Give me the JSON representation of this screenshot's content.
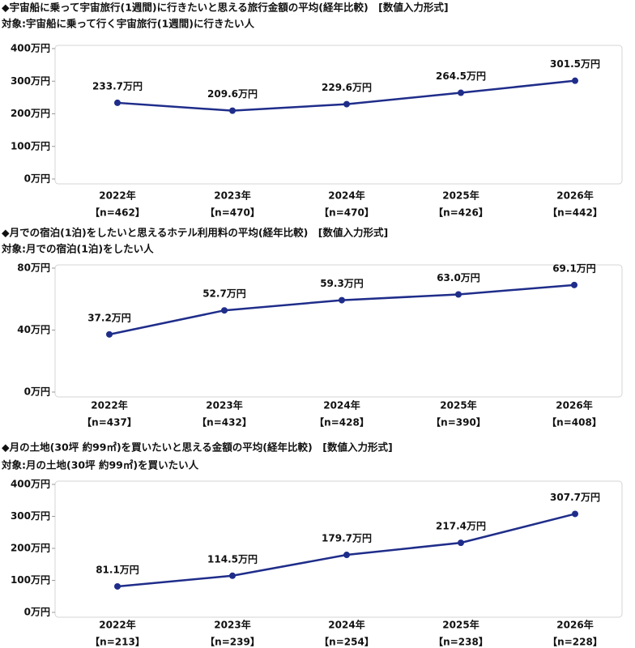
{
  "chart_data": [
    {
      "type": "line",
      "title": "◆宇宙船に乗って宇宙旅行(1週間)に行きたいと思える旅行金額の平均(経年比較)　[数値入力形式]",
      "subtitle": "対象:宇宙船に乗って行く宇宙旅行(1週間)に行きたい人",
      "categories": [
        "2022年",
        "2023年",
        "2024年",
        "2025年",
        "2026年"
      ],
      "sample_sizes": [
        "【n=462】",
        "【n=470】",
        "【n=470】",
        "【n=426】",
        "【n=442】"
      ],
      "values": [
        233.7,
        209.6,
        229.6,
        264.5,
        301.5
      ],
      "value_labels": [
        "233.7万円",
        "209.6万円",
        "229.6万円",
        "264.5万円",
        "301.5万円"
      ],
      "color": "#1f2d8a",
      "ylim": [
        0,
        400
      ],
      "yticks": [
        {
          "value": 0,
          "label": "0万円"
        },
        {
          "value": 100,
          "label": "100万円"
        },
        {
          "value": 200,
          "label": "200万円"
        },
        {
          "value": 300,
          "label": "300万円"
        },
        {
          "value": 400,
          "label": "400万円"
        }
      ]
    },
    {
      "type": "line",
      "title": "◆月での宿泊(1泊)をしたいと思えるホテル利用料の平均(経年比較)　[数値入力形式]",
      "subtitle": "対象:月での宿泊(1泊)をしたい人",
      "categories": [
        "2022年",
        "2023年",
        "2024年",
        "2025年",
        "2026年"
      ],
      "sample_sizes": [
        "【n=437】",
        "【n=432】",
        "【n=428】",
        "【n=390】",
        "【n=408】"
      ],
      "values": [
        37.2,
        52.7,
        59.3,
        63.0,
        69.1
      ],
      "value_labels": [
        "37.2万円",
        "52.7万円",
        "59.3万円",
        "63.0万円",
        "69.1万円"
      ],
      "color": "#1f2d8a",
      "ylim": [
        0,
        80
      ],
      "yticks": [
        {
          "value": 0,
          "label": "0万円"
        },
        {
          "value": 40,
          "label": "40万円"
        },
        {
          "value": 80,
          "label": "80万円"
        }
      ]
    },
    {
      "type": "line",
      "title": "◆月の土地(30坪 約99㎡)を買いたいと思える金額の平均(経年比較)　[数値入力形式]",
      "subtitle": "対象:月の土地(30坪 約99㎡)を買いたい人",
      "categories": [
        "2022年",
        "2023年",
        "2024年",
        "2025年",
        "2026年"
      ],
      "sample_sizes": [
        "【n=213】",
        "【n=239】",
        "【n=254】",
        "【n=238】",
        "【n=228】"
      ],
      "values": [
        81.1,
        114.5,
        179.7,
        217.4,
        307.7
      ],
      "value_labels": [
        "81.1万円",
        "114.5万円",
        "179.7万円",
        "217.4万円",
        "307.7万円"
      ],
      "color": "#1f2d8a",
      "ylim": [
        0,
        400
      ],
      "yticks": [
        {
          "value": 0,
          "label": "0万円"
        },
        {
          "value": 100,
          "label": "100万円"
        },
        {
          "value": 200,
          "label": "200万円"
        },
        {
          "value": 300,
          "label": "300万円"
        },
        {
          "value": 400,
          "label": "400万円"
        }
      ]
    }
  ]
}
